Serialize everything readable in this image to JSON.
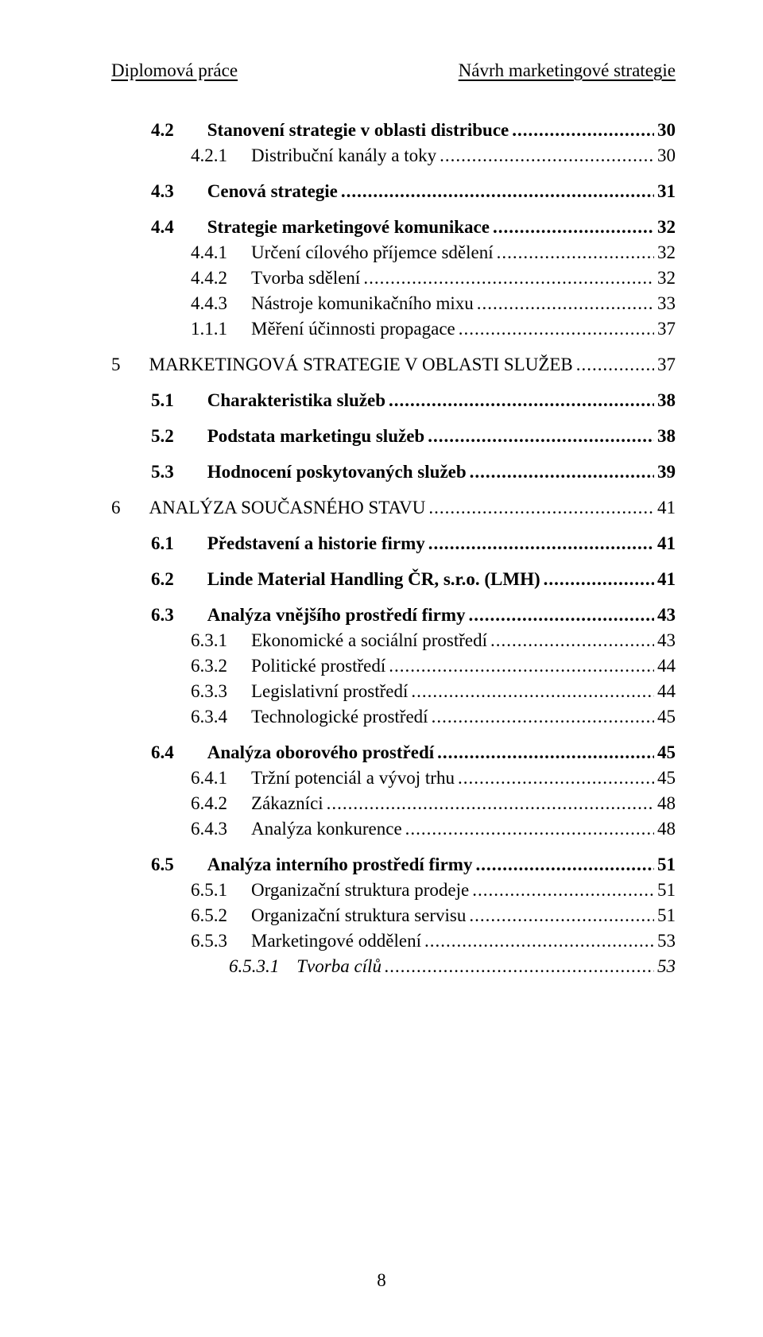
{
  "header": {
    "left": "Diplomová práce",
    "right": "Návrh marketingové strategie"
  },
  "toc": [
    {
      "level": 2,
      "bold": true,
      "spacing": "small",
      "num": "4.2",
      "label": "Stanovení strategie v oblasti distribuce",
      "page": "30"
    },
    {
      "level": 3,
      "bold": false,
      "spacing": "med",
      "num": "4.2.1",
      "label": "Distribuční kanály a toky",
      "page": "30"
    },
    {
      "level": 2,
      "bold": true,
      "spacing": "med",
      "num": "4.3",
      "label": "Cenová strategie",
      "page": "31"
    },
    {
      "level": 2,
      "bold": true,
      "spacing": "small",
      "num": "4.4",
      "label": "Strategie marketingové komunikace",
      "page": "32"
    },
    {
      "level": 3,
      "bold": false,
      "spacing": "small",
      "num": "4.4.1",
      "label": "Určení cílového příjemce sdělení",
      "page": "32"
    },
    {
      "level": 3,
      "bold": false,
      "spacing": "small",
      "num": "4.4.2",
      "label": "Tvorba sdělení",
      "page": "32"
    },
    {
      "level": 3,
      "bold": false,
      "spacing": "small",
      "num": "4.4.3",
      "label": "Nástroje komunikačního mixu",
      "page": "33"
    },
    {
      "level": 3,
      "bold": false,
      "spacing": "med",
      "num": "1.1.1",
      "label": "Měření účinnosti propagace",
      "page": "37"
    },
    {
      "level": 1,
      "bold": false,
      "spacing": "med",
      "num": "5",
      "label": "MARKETINGOVÁ STRATEGIE V OBLASTI SLUŽEB",
      "page": "37"
    },
    {
      "level": 2,
      "bold": true,
      "spacing": "med",
      "num": "5.1",
      "label": "Charakteristika služeb",
      "page": "38"
    },
    {
      "level": 2,
      "bold": true,
      "spacing": "med",
      "num": "5.2",
      "label": "Podstata marketingu služeb",
      "page": "38"
    },
    {
      "level": 2,
      "bold": true,
      "spacing": "med",
      "num": "5.3",
      "label": "Hodnocení poskytovaných služeb",
      "page": "39"
    },
    {
      "level": 1,
      "bold": false,
      "spacing": "med",
      "num": "6",
      "label": "ANALÝZA  SOUČASNÉHO STAVU",
      "page": "41"
    },
    {
      "level": 2,
      "bold": true,
      "spacing": "med",
      "num": "6.1",
      "label": "Představení a historie firmy",
      "page": "41"
    },
    {
      "level": 2,
      "bold": true,
      "spacing": "med",
      "num": "6.2",
      "label": "Linde Material Handling ČR, s.r.o. (LMH)",
      "page": "41"
    },
    {
      "level": 2,
      "bold": true,
      "spacing": "small",
      "num": "6.3",
      "label": "Analýza vnějšího prostředí firmy",
      "page": "43"
    },
    {
      "level": 3,
      "bold": false,
      "spacing": "small",
      "num": "6.3.1",
      "label": "Ekonomické a sociální prostředí",
      "page": "43"
    },
    {
      "level": 3,
      "bold": false,
      "spacing": "small",
      "num": "6.3.2",
      "label": "Politické  prostředí",
      "page": "44"
    },
    {
      "level": 3,
      "bold": false,
      "spacing": "small",
      "num": "6.3.3",
      "label": "Legislativní prostředí",
      "page": "44"
    },
    {
      "level": 3,
      "bold": false,
      "spacing": "med",
      "num": "6.3.4",
      "label": "Technologické prostředí",
      "page": "45"
    },
    {
      "level": 2,
      "bold": true,
      "spacing": "small",
      "num": "6.4",
      "label": "Analýza oborového prostředí",
      "page": "45"
    },
    {
      "level": 3,
      "bold": false,
      "spacing": "small",
      "num": "6.4.1",
      "label": "Tržní potenciál a vývoj trhu",
      "page": "45"
    },
    {
      "level": 3,
      "bold": false,
      "spacing": "small",
      "num": "6.4.2",
      "label": "Zákazníci",
      "page": "48"
    },
    {
      "level": 3,
      "bold": false,
      "spacing": "med",
      "num": "6.4.3",
      "label": "Analýza konkurence",
      "page": "48"
    },
    {
      "level": 2,
      "bold": true,
      "spacing": "small",
      "num": "6.5",
      "label": "Analýza interního prostředí firmy",
      "page": "51"
    },
    {
      "level": 3,
      "bold": false,
      "spacing": "small",
      "num": "6.5.1",
      "label": "Organizační struktura prodeje",
      "page": "51"
    },
    {
      "level": 3,
      "bold": false,
      "spacing": "small",
      "num": "6.5.2",
      "label": "Organizační struktura servisu",
      "page": "51"
    },
    {
      "level": 3,
      "bold": false,
      "spacing": "small",
      "num": "6.5.3",
      "label": "Marketingové oddělení",
      "page": "53"
    },
    {
      "level": 4,
      "bold": false,
      "spacing": "small",
      "num": "6.5.3.1",
      "label": "Tvorba cílů",
      "page": "53"
    }
  ],
  "page_number": "8",
  "colors": {
    "text": "#000000",
    "background": "#ffffff"
  },
  "typography": {
    "font_family": "Times New Roman",
    "base_size_pt": 17
  }
}
